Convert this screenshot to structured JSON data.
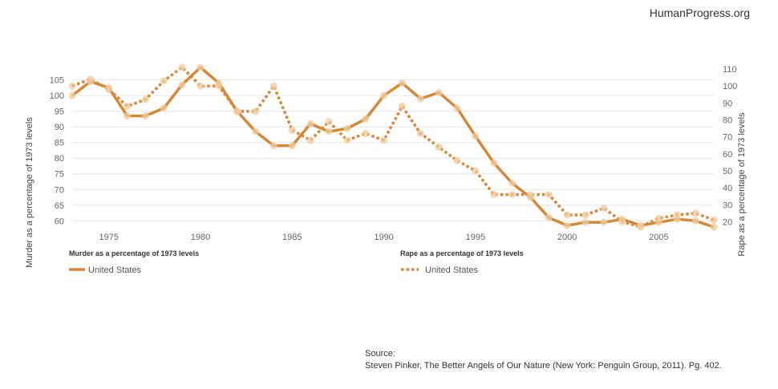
{
  "brand": "HumanProgress.org",
  "source": {
    "label": "Source:",
    "text": "Steven Pinker, The Better Angels of Our Nature (New York: Penguin Group, 2011). Pg. 402."
  },
  "colors": {
    "line": "#d4893a",
    "marker": "#f0c99b",
    "grid": "#e6e6e6"
  },
  "chart_data": {
    "type": "line",
    "x": [
      1973,
      1974,
      1975,
      1976,
      1977,
      1978,
      1979,
      1980,
      1981,
      1982,
      1983,
      1984,
      1985,
      1986,
      1987,
      1988,
      1989,
      1990,
      1991,
      1992,
      1993,
      1994,
      1995,
      1996,
      1997,
      1998,
      1999,
      2000,
      2001,
      2002,
      2003,
      2004,
      2005,
      2006,
      2007,
      2008
    ],
    "xticks": [
      1975,
      1980,
      1985,
      1990,
      1995,
      2000,
      2005
    ],
    "xlim": [
      1973,
      2008
    ],
    "y_left": {
      "title": "Murder as a percentage of 1973 levels",
      "ticks": [
        60,
        65,
        70,
        75,
        80,
        85,
        90,
        95,
        100,
        105
      ],
      "range": [
        57,
        108.5
      ]
    },
    "y_right": {
      "title": "Rape as a percentage of 1973 levels",
      "ticks": [
        20,
        30,
        40,
        50,
        60,
        70,
        80,
        90,
        100,
        110
      ],
      "range": [
        15,
        110
      ]
    },
    "series": [
      {
        "group": "Murder as a percentage of 1973 levels",
        "name": "United States",
        "axis": "left",
        "style": "solid",
        "values": [
          100,
          104.5,
          102.5,
          93.5,
          93.5,
          96,
          103.5,
          109,
          104,
          95,
          88.5,
          84,
          84,
          91,
          88.5,
          89.5,
          92.5,
          100,
          104,
          99,
          101,
          96,
          87,
          78.5,
          72,
          67.5,
          61,
          58.5,
          59.5,
          59.5,
          60.5,
          58.5,
          59.5,
          60.5,
          60,
          58
        ]
      },
      {
        "group": "Rape as a percentage of 1973 levels",
        "name": "United States",
        "axis": "right",
        "style": "dotted",
        "values": [
          100,
          104,
          98,
          88,
          92,
          103,
          111,
          100,
          100,
          85,
          85,
          100,
          74,
          68,
          79,
          68,
          72,
          68,
          88,
          72,
          64,
          56,
          50,
          36,
          36,
          36,
          36,
          24,
          24,
          28,
          20,
          17,
          22,
          24,
          25,
          21
        ]
      }
    ]
  }
}
